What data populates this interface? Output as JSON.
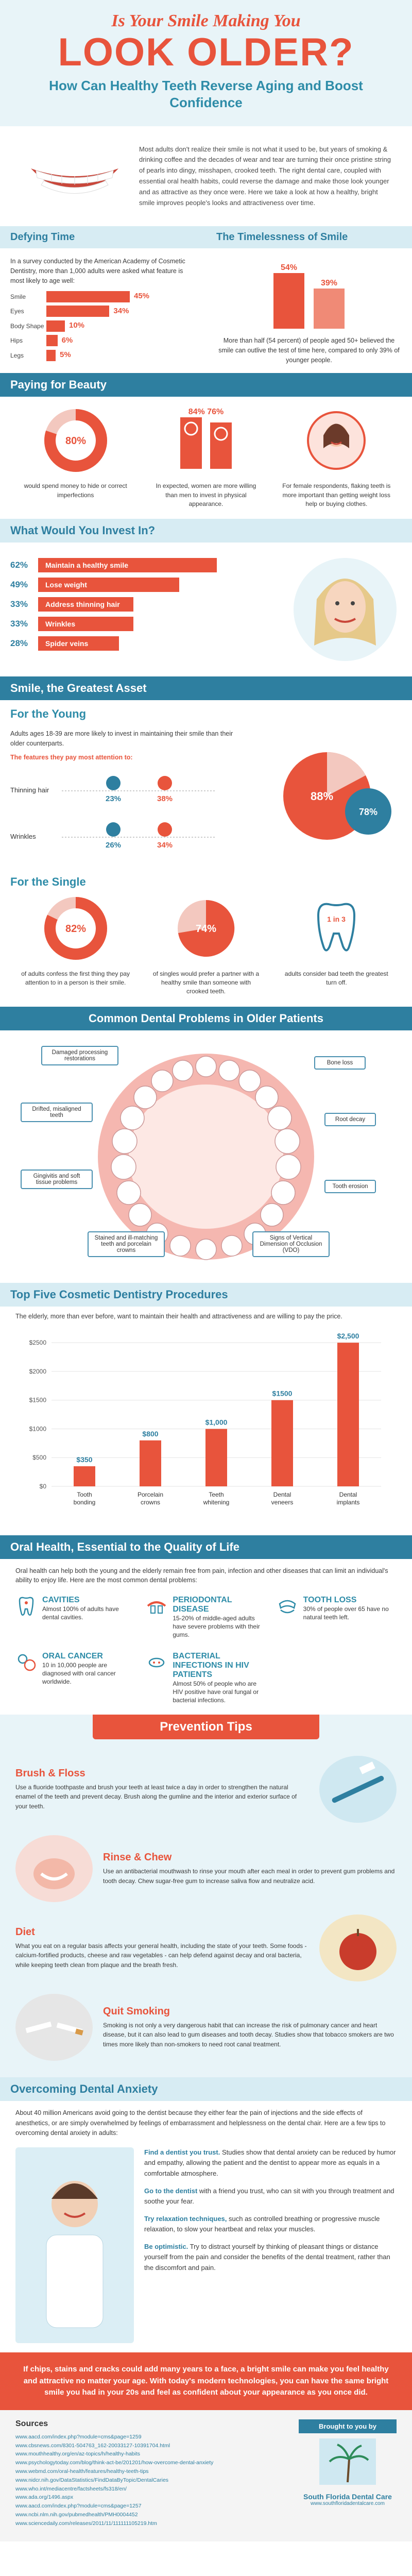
{
  "header": {
    "kicker": "Is Your Smile Making You",
    "title": "LOOK OLDER?",
    "subtitle": "How Can Healthy Teeth Reverse Aging and Boost Confidence"
  },
  "intro": {
    "text": "Most adults don't realize their smile is not what it used to be, but years of smoking & drinking coffee and the decades of wear and tear are turning their once pristine string of pearls into dingy, misshapen, crooked teeth. The right dental care, coupled with essential oral health habits, could reverse the damage and make those look younger and as attractive as they once were. Here we take a look at how a healthy, bright smile improves people's looks and attractiveness over time."
  },
  "defying_time": {
    "heading": "Defying Time",
    "text": "In a survey conducted by the American Academy of Cosmetic Dentistry, more than 1,000 adults were asked what feature is most likely to age well:",
    "bars": [
      {
        "label": "Smile",
        "value": 45,
        "display": "45%"
      },
      {
        "label": "Eyes",
        "value": 34,
        "display": "34%"
      },
      {
        "label": "Body Shape",
        "value": 10,
        "display": "10%"
      },
      {
        "label": "Hips",
        "value": 6,
        "display": "6%"
      },
      {
        "label": "Legs",
        "value": 5,
        "display": "5%"
      }
    ]
  },
  "timelessness": {
    "heading": "The Timelessness of Smile",
    "bars": [
      {
        "value": 54,
        "display": "54%"
      },
      {
        "value": 39,
        "display": "39%"
      }
    ],
    "text": "More than half (54 percent) of people aged 50+ believed the smile can outlive the test of time here, compared to only 39% of younger people."
  },
  "beauty": {
    "heading": "Paying for Beauty",
    "items": [
      {
        "value": 80,
        "display": "80%",
        "text": "would spend money to hide or correct imperfections"
      },
      {
        "value": 76,
        "display": "84%  76%",
        "text": "In expected, women are more willing than men to invest in physical appearance."
      },
      {
        "value": 0,
        "display": "",
        "text": "For female respondents, flaking teeth is more important than getting weight loss help or buying clothes."
      }
    ]
  },
  "invest": {
    "heading": "What Would You Invest In?",
    "items": [
      {
        "pct": "62%",
        "label": "Maintain a healthy smile",
        "value": 62
      },
      {
        "pct": "49%",
        "label": "Lose weight",
        "value": 49
      },
      {
        "pct": "33%",
        "label": "Address thinning hair",
        "value": 33
      },
      {
        "pct": "33%",
        "label": "Wrinkles",
        "value": 33
      },
      {
        "pct": "28%",
        "label": "Spider veins",
        "value": 28
      }
    ]
  },
  "greatest_asset": {
    "heading": "Smile, the Greatest Asset",
    "young": {
      "heading": "For the Young",
      "text": "Adults ages 18-39 are more likely to invest in maintaining their smile than their older counterparts.",
      "sub": "The features they pay most attention to:",
      "rows": [
        {
          "label": "Thinning hair",
          "a": "23%",
          "b": "38%"
        },
        {
          "label": "Wrinkles",
          "a": "26%",
          "b": "34%"
        }
      ],
      "pie_a": "88%",
      "pie_b": "78%"
    },
    "single": {
      "heading": "For the Single",
      "items": [
        {
          "value": 82,
          "display": "82%",
          "text": "of adults confess the first thing they pay attention to in a person is their smile."
        },
        {
          "value": 74,
          "display": "74%",
          "text": "of singles would prefer a partner with a healthy smile than someone with crooked teeth."
        },
        {
          "value": 0,
          "display": "1 in 3",
          "text": "adults consider bad teeth the greatest turn off."
        }
      ]
    }
  },
  "dental_problems": {
    "heading": "Common Dental Problems in Older Patients",
    "callouts": [
      "Damaged processing restorations",
      "Bone loss",
      "Root decay",
      "Drifted, misaligned teeth",
      "Gingivitis and soft tissue problems",
      "Tooth erosion",
      "Stained and ill-matching teeth and porcelain crowns",
      "Signs of Vertical Dimension of Occlusion (VDO)"
    ]
  },
  "procedures": {
    "heading": "Top Five Cosmetic Dentistry Procedures",
    "text": "The elderly, more than ever before, want to maintain their health and attractiveness and are willing to pay the price."
  },
  "chart_data": {
    "type": "bar",
    "categories": [
      "Tooth bonding",
      "Porcelain crowns",
      "Teeth whitening",
      "Dental veneers",
      "Dental implants"
    ],
    "values": [
      350,
      800,
      1000,
      1500,
      2500
    ],
    "value_labels": [
      "$350",
      "$800",
      "$1,000",
      "$1500",
      "$2,500"
    ],
    "ytick_labels": [
      "$0",
      "$500",
      "$1000",
      "$1500",
      "$2000",
      "$2500"
    ],
    "ylim": [
      0,
      2600
    ],
    "grid": true,
    "bar_color": "#e8543c"
  },
  "oral_health": {
    "heading": "Oral Health, Essential to the Quality of Life",
    "text": "Oral health can help both the young and the elderly remain free from pain, infection and other diseases that can limit an individual's ability to enjoy life. Here are the most common dental problems:",
    "items": [
      {
        "title": "Cavities",
        "text": "Almost 100% of adults have dental cavities."
      },
      {
        "title": "Periodontal Disease",
        "text": "15-20% of middle-aged adults have severe problems with their gums."
      },
      {
        "title": "Tooth Loss",
        "text": "30% of people over 65 have no natural teeth left."
      },
      {
        "title": "Oral Cancer",
        "text": "10 in 10,000 people are diagnosed with oral cancer worldwide."
      },
      {
        "title": "Bacterial Infections in HIV Patients",
        "text": "Almost 50% of people who are HIV positive have oral fungal or bacterial infections."
      }
    ]
  },
  "tips": {
    "heading": "Prevention Tips",
    "items": [
      {
        "title": "Brush & Floss",
        "text": "Use a fluoride toothpaste and brush your teeth at least twice a day in order to strengthen the natural enamel of the teeth and prevent decay. Brush along the gumline and the interior and exterior surface of your teeth."
      },
      {
        "title": "Rinse & Chew",
        "text": "Use an antibacterial mouthwash to rinse your mouth after each meal in order to prevent gum problems and tooth decay. Chew sugar-free gum to increase saliva flow and neutralize acid."
      },
      {
        "title": "Diet",
        "text": "What you eat on a regular basis affects your general health, including the state of your teeth. Some foods - calcium-fortified products, cheese and raw vegetables - can help defend against decay and oral bacteria, while keeping teeth clean from plaque and the breath fresh."
      },
      {
        "title": "Quit Smoking",
        "text": "Smoking is not only a very dangerous habit that can increase the risk of pulmonary cancer and heart disease, but it can also lead to gum diseases and tooth decay. Studies show that tobacco smokers are two times more likely than non-smokers to need root canal treatment."
      }
    ]
  },
  "anxiety": {
    "heading": "Overcoming Dental Anxiety",
    "intro": "About 40 million Americans avoid going to the dentist because they either fear the pain of injections and the side effects of anesthetics, or are simply overwhelmed by feelings of embarrassment and helplessness on the dental chair. Here are a few tips to overcoming dental anxiety in adults:",
    "items": [
      {
        "lead": "Find a dentist you trust.",
        "text": " Studies show that dental anxiety can be reduced by humor and empathy, allowing the patient and the dentist to appear more as equals in a comfortable atmosphere."
      },
      {
        "lead": "Go to the dentist",
        "text": " with a friend you trust, who can sit with you through treatment and soothe your fear."
      },
      {
        "lead": "Try relaxation techniques,",
        "text": " such as controlled breathing or progressive muscle relaxation, to slow your heartbeat and relax your muscles."
      },
      {
        "lead": "Be optimistic.",
        "text": " Try to distract yourself by thinking of pleasant things or distance yourself from the pain and consider the benefits of the dental treatment, rather than the discomfort and pain."
      }
    ]
  },
  "closing": "If chips, stains and cracks could add many years to a face, a bright smile can make you feel healthy and attractive no matter your age. With today's modern technologies, you can have the same bright smile you had in your 20s and feel as confident about your appearance as you once did.",
  "sources": {
    "heading": "Sources",
    "items": [
      "www.aacd.com/index.php?module=cms&page=1259",
      "www.cbsnews.com/8301-504763_162-20033127-10391704.html",
      "www.mouthhealthy.org/en/az-topics/h/healthy-habits",
      "www.psychologytoday.com/blog/think-act-be/201201/how-overcome-dental-anxiety",
      "www.webmd.com/oral-health/features/healthy-teeth-tips",
      "www.nidcr.nih.gov/DataStatistics/FindDataByTopic/DentalCaries",
      "www.who.int/mediacentre/factsheets/fs318/en/",
      "www.ada.org/1496.aspx",
      "www.aacd.com/index.php?module=cms&page=1257",
      "www.ncbi.nlm.nih.gov/pubmedhealth/PMH0004452",
      "www.sciencedaily.com/releases/2011/11/111111105219.htm"
    ],
    "brought_by": "Brought to you by",
    "brand_name": "South Florida Dental Care",
    "brand_url": "www.southfloridadentalcare.com"
  },
  "colors": {
    "accent": "#e8543c",
    "primary": "#2e7fa0",
    "light": "#d7ecf3"
  }
}
